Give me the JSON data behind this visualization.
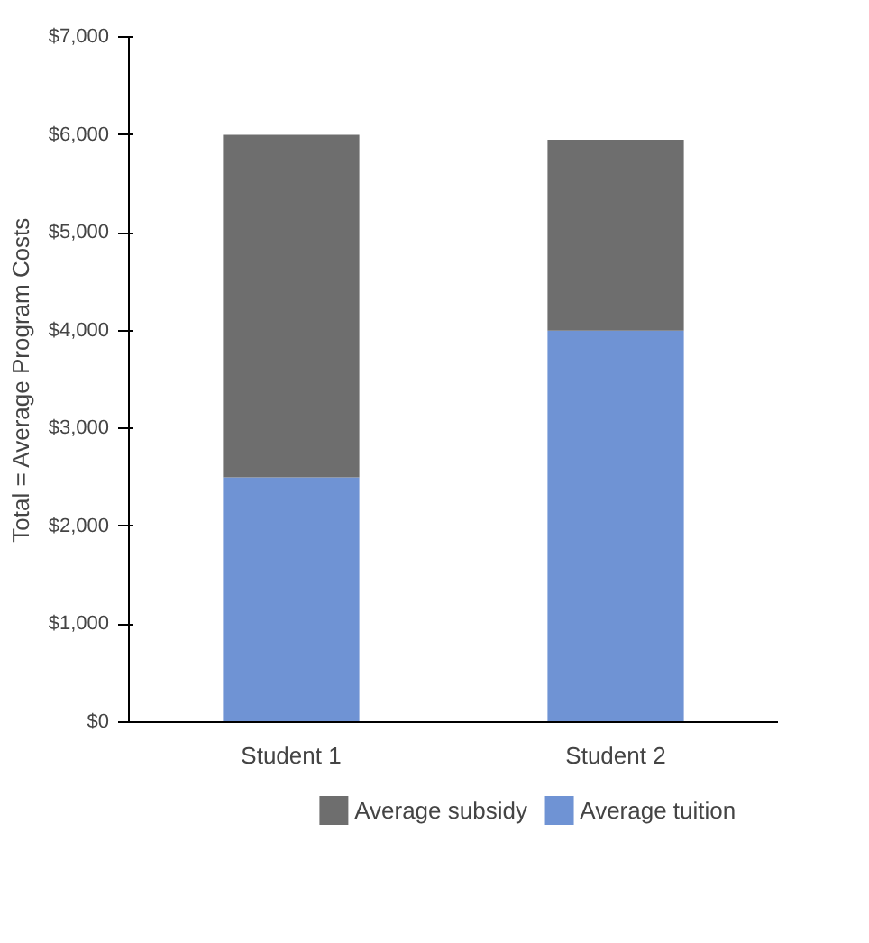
{
  "chart_data": {
    "type": "bar",
    "stacked": true,
    "ylabel": "Total = Average Program Costs",
    "categories": [
      "Student 1",
      "Student 2"
    ],
    "series": [
      {
        "name": "Average tuition",
        "color": "#6f93d4",
        "values": [
          2500,
          4000
        ]
      },
      {
        "name": "Average subsidy",
        "color": "#6e6e6e",
        "values": [
          3500,
          1950
        ]
      }
    ],
    "ylim": [
      0,
      7000
    ],
    "yticks": [
      {
        "value": 0,
        "label": "$0"
      },
      {
        "value": 1000,
        "label": "$1,000"
      },
      {
        "value": 2000,
        "label": "$2,000"
      },
      {
        "value": 3000,
        "label": "$3,000"
      },
      {
        "value": 4000,
        "label": "$4,000"
      },
      {
        "value": 5000,
        "label": "$5,000"
      },
      {
        "value": 6000,
        "label": "$6,000"
      },
      {
        "value": 7000,
        "label": "$7,000"
      }
    ],
    "grid": false,
    "legend": "bottom"
  }
}
